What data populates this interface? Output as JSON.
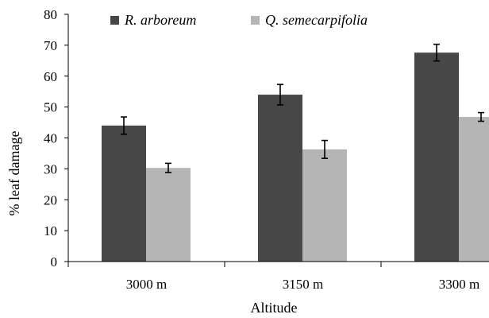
{
  "chart_data": {
    "type": "bar",
    "categories": [
      "3000 m",
      "3150 m",
      "3300 m"
    ],
    "series": [
      {
        "name": "R. arboreum",
        "color": "#474747",
        "values": [
          44,
          54,
          67.6
        ],
        "errors": [
          2.8,
          3.3,
          2.7
        ]
      },
      {
        "name": "Q. semecarpifolia",
        "color": "#b5b5b5",
        "values": [
          30.3,
          36.3,
          46.8
        ],
        "errors": [
          1.5,
          2.9,
          1.4
        ]
      }
    ],
    "xlabel": "Altitude",
    "ylabel": "% leaf damage",
    "ylim": [
      0,
      80
    ],
    "yticks": [
      "0",
      "10",
      "20",
      "30",
      "40",
      "50",
      "60",
      "70",
      "80"
    ],
    "grid": false,
    "legend_position": "top"
  }
}
